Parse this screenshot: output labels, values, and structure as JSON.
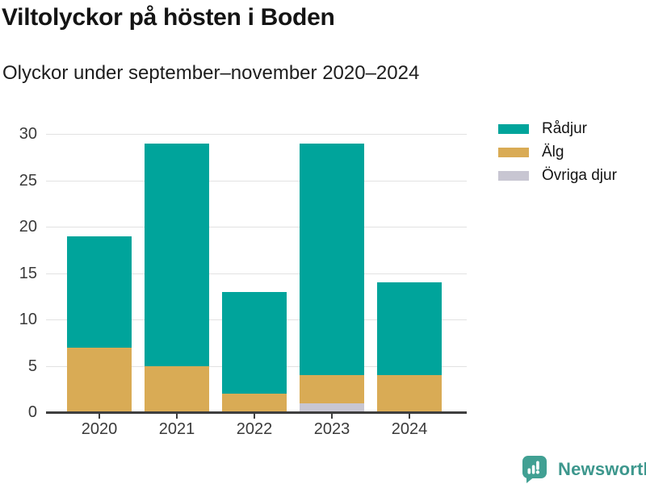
{
  "header": {
    "title": "Viltolyckor på hösten i Boden",
    "subtitle": "Olyckor under september–november 2020–2024"
  },
  "chart_data": {
    "type": "bar",
    "stacked": true,
    "title": "Viltolyckor på hösten i Boden",
    "subtitle": "Olyckor under september–november 2020–2024",
    "categories": [
      "2020",
      "2021",
      "2022",
      "2023",
      "2024"
    ],
    "series": [
      {
        "name": "Rådjur",
        "color": "#00a49b",
        "values": [
          12,
          24,
          11,
          25,
          10
        ]
      },
      {
        "name": "Älg",
        "color": "#d9ab55",
        "values": [
          7,
          5,
          2,
          3,
          4
        ]
      },
      {
        "name": "Övriga djur",
        "color": "#c8c6d2",
        "values": [
          0,
          0,
          0,
          1,
          0
        ]
      }
    ],
    "stack_order_bottom_to_top": [
      "Övriga djur",
      "Älg",
      "Rådjur"
    ],
    "totals": [
      19,
      29,
      13,
      29,
      14
    ],
    "xlabel": "",
    "ylabel": "",
    "ylim": [
      0,
      30
    ],
    "yticks": [
      0,
      5,
      10,
      15,
      20,
      25,
      30
    ],
    "grid": true,
    "legend_position": "top-right"
  },
  "footer": {
    "brand": "Newsworthy",
    "logo_icon": "speech-bubble-bar-chart-icon",
    "brand_color": "#3d978d",
    "logo_bg_color": "#41a093"
  },
  "colors": {
    "background": "#ffffff",
    "axis": "#3e3e3e",
    "gridline": "#e2e2e2",
    "tick_label": "#3a3a3a",
    "title_text": "#141414"
  }
}
